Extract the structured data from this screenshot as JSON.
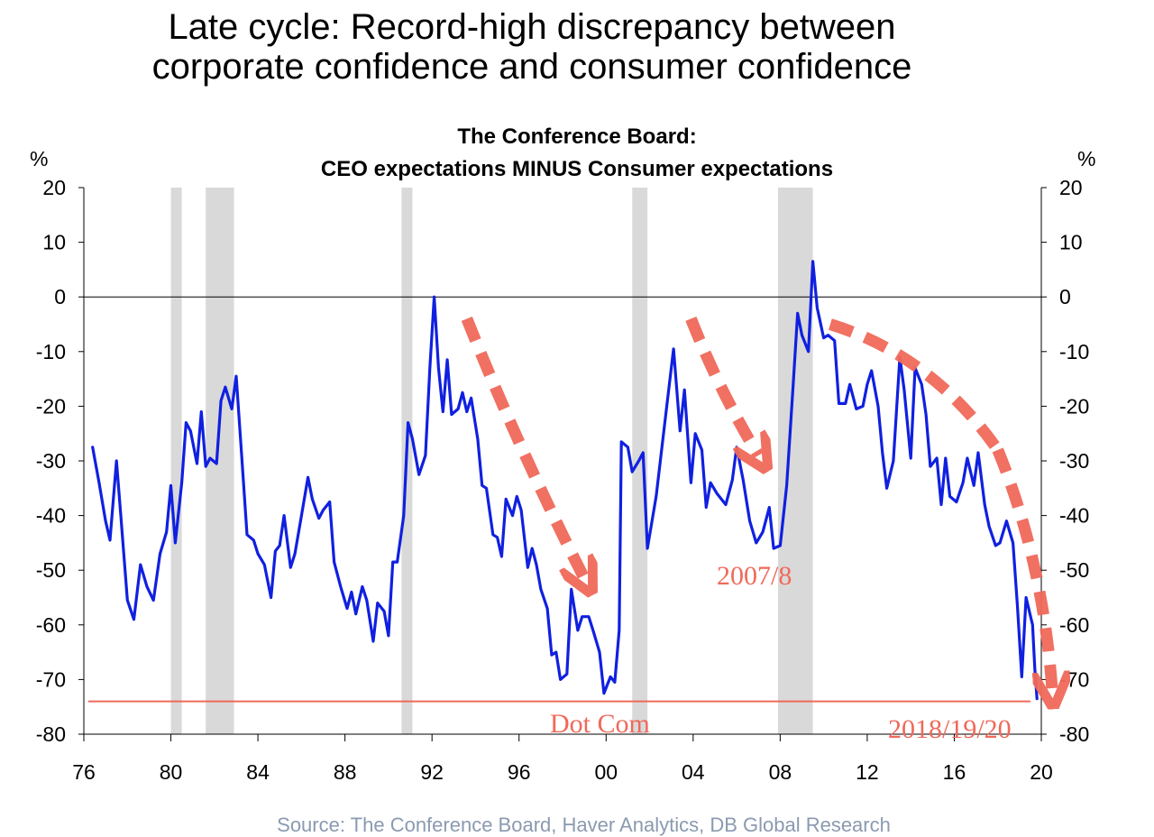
{
  "headline": {
    "line1": "Late cycle: Record-high discrepancy between",
    "line2": "corporate confidence and consumer confidence"
  },
  "source": "Source: The Conference Board, Haver Analytics, DB Global Research",
  "chart_data": {
    "type": "line",
    "title": "The Conference Board:",
    "subtitle": "CEO expectations MINUS Consumer expectations",
    "y_unit_left": "%",
    "y_unit_right": "%",
    "ylim": [
      -80,
      20
    ],
    "y_ticks": [
      20,
      10,
      0,
      -10,
      -20,
      -30,
      -40,
      -50,
      -60,
      -70,
      -80
    ],
    "x_range": [
      1976,
      2020
    ],
    "x_ticks": [
      {
        "year": 1976,
        "label": "76"
      },
      {
        "year": 1980,
        "label": "80"
      },
      {
        "year": 1984,
        "label": "84"
      },
      {
        "year": 1988,
        "label": "88"
      },
      {
        "year": 1992,
        "label": "92"
      },
      {
        "year": 1996,
        "label": "96"
      },
      {
        "year": 2000,
        "label": "00"
      },
      {
        "year": 2004,
        "label": "04"
      },
      {
        "year": 2008,
        "label": "08"
      },
      {
        "year": 2012,
        "label": "12"
      },
      {
        "year": 2016,
        "label": "16"
      },
      {
        "year": 2020,
        "label": "20"
      }
    ],
    "recessions": [
      [
        1980.0,
        1980.5
      ],
      [
        1981.6,
        1982.9
      ],
      [
        1990.6,
        1991.1
      ],
      [
        2001.2,
        2001.9
      ],
      [
        2007.9,
        2009.5
      ]
    ],
    "series": [
      {
        "color": "#1020e0",
        "points": [
          [
            1976.4,
            -27.5
          ],
          [
            1976.7,
            -34
          ],
          [
            1977.0,
            -41
          ],
          [
            1977.2,
            -44.5
          ],
          [
            1977.5,
            -30
          ],
          [
            1977.7,
            -40
          ],
          [
            1978.0,
            -55.5
          ],
          [
            1978.3,
            -59
          ],
          [
            1978.6,
            -49
          ],
          [
            1978.9,
            -53
          ],
          [
            1979.2,
            -55.5
          ],
          [
            1979.5,
            -47
          ],
          [
            1979.8,
            -43
          ],
          [
            1980.0,
            -34.5
          ],
          [
            1980.2,
            -45
          ],
          [
            1980.5,
            -34
          ],
          [
            1980.7,
            -23
          ],
          [
            1980.9,
            -24.5
          ],
          [
            1981.2,
            -30.5
          ],
          [
            1981.4,
            -21
          ],
          [
            1981.6,
            -31
          ],
          [
            1981.8,
            -29.5
          ],
          [
            1982.1,
            -30.5
          ],
          [
            1982.3,
            -19
          ],
          [
            1982.5,
            -16.5
          ],
          [
            1982.8,
            -20.5
          ],
          [
            1983.0,
            -14.5
          ],
          [
            1983.2,
            -26
          ],
          [
            1983.5,
            -43.5
          ],
          [
            1983.8,
            -44.5
          ],
          [
            1984.0,
            -47
          ],
          [
            1984.3,
            -49
          ],
          [
            1984.6,
            -55
          ],
          [
            1984.8,
            -46.5
          ],
          [
            1985.0,
            -45.5
          ],
          [
            1985.2,
            -40
          ],
          [
            1985.5,
            -49.5
          ],
          [
            1985.7,
            -47
          ],
          [
            1986.0,
            -40
          ],
          [
            1986.3,
            -33
          ],
          [
            1986.5,
            -37
          ],
          [
            1986.8,
            -40.5
          ],
          [
            1987.0,
            -39
          ],
          [
            1987.3,
            -37.5
          ],
          [
            1987.5,
            -48.5
          ],
          [
            1987.8,
            -53
          ],
          [
            1988.1,
            -57
          ],
          [
            1988.3,
            -54
          ],
          [
            1988.5,
            -58
          ],
          [
            1988.8,
            -53
          ],
          [
            1989.0,
            -55.5
          ],
          [
            1989.3,
            -63
          ],
          [
            1989.5,
            -56
          ],
          [
            1989.8,
            -57.5
          ],
          [
            1990.0,
            -62
          ],
          [
            1990.2,
            -48.5
          ],
          [
            1990.4,
            -48.5
          ],
          [
            1990.7,
            -40
          ],
          [
            1990.9,
            -23
          ],
          [
            1991.1,
            -26
          ],
          [
            1991.4,
            -32.5
          ],
          [
            1991.7,
            -29
          ],
          [
            1991.9,
            -13
          ],
          [
            1992.1,
            0
          ],
          [
            1992.3,
            -13
          ],
          [
            1992.5,
            -21
          ],
          [
            1992.7,
            -11.5
          ],
          [
            1992.9,
            -21.5
          ],
          [
            1993.2,
            -20.5
          ],
          [
            1993.4,
            -17.5
          ],
          [
            1993.6,
            -21
          ],
          [
            1993.8,
            -18.5
          ],
          [
            1994.1,
            -26
          ],
          [
            1994.3,
            -34.5
          ],
          [
            1994.5,
            -35
          ],
          [
            1994.8,
            -43.5
          ],
          [
            1995.0,
            -44
          ],
          [
            1995.2,
            -47.5
          ],
          [
            1995.4,
            -37
          ],
          [
            1995.7,
            -40
          ],
          [
            1995.9,
            -36.5
          ],
          [
            1996.1,
            -39
          ],
          [
            1996.4,
            -49.5
          ],
          [
            1996.6,
            -46
          ],
          [
            1996.8,
            -49
          ],
          [
            1997.0,
            -53.5
          ],
          [
            1997.3,
            -57
          ],
          [
            1997.5,
            -65.5
          ],
          [
            1997.7,
            -65
          ],
          [
            1997.9,
            -70
          ],
          [
            1998.2,
            -69
          ],
          [
            1998.4,
            -53.5
          ],
          [
            1998.7,
            -61
          ],
          [
            1998.9,
            -58.5
          ],
          [
            1999.2,
            -58.5
          ],
          [
            1999.4,
            -61
          ],
          [
            1999.7,
            -65
          ],
          [
            1999.9,
            -72.5
          ],
          [
            2000.2,
            -69.5
          ],
          [
            2000.4,
            -70.5
          ],
          [
            2000.6,
            -61
          ],
          [
            2000.7,
            -26.5
          ],
          [
            2001.0,
            -27.5
          ],
          [
            2001.2,
            -32
          ],
          [
            2001.5,
            -30
          ],
          [
            2001.7,
            -28.5
          ],
          [
            2001.9,
            -46
          ],
          [
            2002.3,
            -36.5
          ],
          [
            2002.8,
            -19.5
          ],
          [
            2003.1,
            -9.5
          ],
          [
            2003.4,
            -24.5
          ],
          [
            2003.6,
            -17
          ],
          [
            2003.9,
            -34
          ],
          [
            2004.1,
            -25
          ],
          [
            2004.4,
            -28
          ],
          [
            2004.6,
            -38.5
          ],
          [
            2004.8,
            -34
          ],
          [
            2005.1,
            -36
          ],
          [
            2005.5,
            -38
          ],
          [
            2005.8,
            -33.5
          ],
          [
            2006.0,
            -27.5
          ],
          [
            2006.3,
            -33.5
          ],
          [
            2006.6,
            -41
          ],
          [
            2006.9,
            -45
          ],
          [
            2007.2,
            -43
          ],
          [
            2007.5,
            -38.5
          ],
          [
            2007.7,
            -46
          ],
          [
            2008.0,
            -45.5
          ],
          [
            2008.3,
            -34.5
          ],
          [
            2008.6,
            -16
          ],
          [
            2008.8,
            -3
          ],
          [
            2009.0,
            -7
          ],
          [
            2009.3,
            -10
          ],
          [
            2009.5,
            6.5
          ],
          [
            2009.7,
            -2
          ],
          [
            2010.0,
            -7.5
          ],
          [
            2010.2,
            -7
          ],
          [
            2010.5,
            -8
          ],
          [
            2010.7,
            -19.5
          ],
          [
            2011.0,
            -19.5
          ],
          [
            2011.2,
            -16
          ],
          [
            2011.5,
            -20.5
          ],
          [
            2011.8,
            -20
          ],
          [
            2012.0,
            -16
          ],
          [
            2012.2,
            -13.5
          ],
          [
            2012.5,
            -20
          ],
          [
            2012.7,
            -28.5
          ],
          [
            2012.9,
            -35
          ],
          [
            2013.2,
            -30
          ],
          [
            2013.5,
            -11
          ],
          [
            2013.7,
            -17
          ],
          [
            2014.0,
            -29.5
          ],
          [
            2014.2,
            -13
          ],
          [
            2014.5,
            -16
          ],
          [
            2014.7,
            -21.5
          ],
          [
            2014.9,
            -31
          ],
          [
            2015.2,
            -29.5
          ],
          [
            2015.4,
            -38
          ],
          [
            2015.6,
            -29.5
          ],
          [
            2015.8,
            -36.5
          ],
          [
            2016.1,
            -37.5
          ],
          [
            2016.4,
            -34
          ],
          [
            2016.6,
            -29.5
          ],
          [
            2016.9,
            -34.5
          ],
          [
            2017.1,
            -28.5
          ],
          [
            2017.4,
            -38
          ],
          [
            2017.6,
            -42
          ],
          [
            2017.9,
            -45.5
          ],
          [
            2018.1,
            -45
          ],
          [
            2018.4,
            -41
          ],
          [
            2018.7,
            -45
          ],
          [
            2018.9,
            -56.5
          ],
          [
            2019.1,
            -69.5
          ],
          [
            2019.3,
            -55
          ],
          [
            2019.6,
            -60
          ],
          [
            2019.7,
            -68
          ],
          [
            2019.8,
            -73.5
          ]
        ]
      }
    ],
    "reference_line": {
      "value": -74,
      "color": "#f0695a"
    },
    "trend_arrows": [
      {
        "from": [
          1993.6,
          -4
        ],
        "to": [
          1999.0,
          -51.5
        ]
      },
      {
        "from": [
          2003.9,
          -4
        ],
        "to": [
          2007.0,
          -29
        ]
      },
      {
        "from": [
          2010.3,
          -5
        ],
        "to": [
          2018.0,
          -28
        ]
      },
      {
        "from": [
          2018.0,
          -28
        ],
        "to": [
          2020.5,
          -72
        ]
      }
    ],
    "annotations": [
      {
        "label": "2007/8"
      },
      {
        "label": "Dot Com"
      },
      {
        "label": "2018/19/20"
      }
    ],
    "colors": {
      "series": "#1020e0",
      "recession": "#d9d9d9",
      "annotation": "#f0695a"
    }
  }
}
